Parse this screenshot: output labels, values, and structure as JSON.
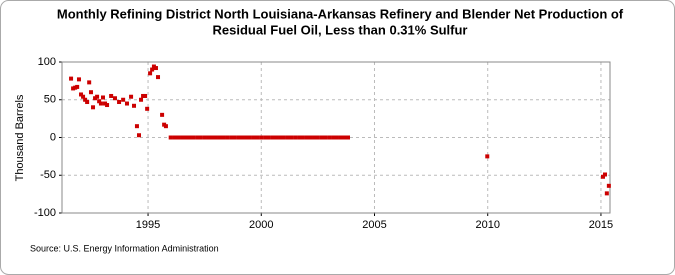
{
  "chart_data": {
    "type": "scatter",
    "title": [
      "Monthly Refining District North Louisiana-Arkansas Refinery and Blender Net Production of",
      "Residual Fuel Oil, Less than 0.31% Sulfur"
    ],
    "y_label": "Thousand Barrels",
    "source": "Source: U.S. Energy Information Administration",
    "color": "#cc0000",
    "grid": true,
    "xlim": [
      1991.2,
      2015.4
    ],
    "ylim": [
      -100,
      100
    ],
    "xticks": [
      1995,
      2000,
      2005,
      2010,
      2015
    ],
    "yticks": [
      -100,
      -50,
      0,
      50,
      100
    ],
    "x": [
      1991.6,
      1991.69,
      1991.78,
      1991.87,
      1991.95,
      1992.04,
      1992.13,
      1992.22,
      1992.31,
      1992.4,
      1992.48,
      1992.57,
      1992.66,
      1992.75,
      1992.84,
      1992.92,
      1993.01,
      1993.1,
      1993.19,
      1993.37,
      1993.54,
      1993.72,
      1993.9,
      1994.07,
      1994.25,
      1994.38,
      1994.51,
      1994.6,
      1994.69,
      1994.78,
      1994.87,
      1994.96,
      1995.09,
      1995.18,
      1995.26,
      1995.35,
      1995.44,
      1995.62,
      1995.71,
      1995.79,
      1996,
      1996.17,
      1996.33,
      1996.5,
      1996.67,
      1996.83,
      1997,
      1997.17,
      1997.33,
      1997.5,
      1997.67,
      1997.83,
      1998,
      1998.17,
      1998.33,
      1998.5,
      1998.67,
      1998.83,
      1999,
      1999.17,
      1999.33,
      1999.5,
      1999.67,
      1999.83,
      2000,
      2000.17,
      2000.33,
      2000.5,
      2000.67,
      2000.83,
      2001,
      2001.17,
      2001.33,
      2001.5,
      2001.67,
      2001.83,
      2002,
      2002.17,
      2002.33,
      2002.5,
      2002.67,
      2002.83,
      2003,
      2003.17,
      2003.33,
      2003.5,
      2003.67,
      2003.83,
      2009.98,
      2015.09,
      2015.18,
      2015.26,
      2015.35
    ],
    "values": [
      78,
      65,
      66,
      67,
      77,
      57,
      54,
      50,
      47,
      73,
      60,
      40,
      52,
      54,
      48,
      45,
      53,
      45,
      43,
      55,
      52,
      47,
      50,
      45,
      54,
      42,
      15,
      3,
      50,
      55,
      55,
      38,
      85,
      90,
      94,
      92,
      80,
      30,
      17,
      15,
      0,
      0,
      0,
      0,
      0,
      0,
      0,
      0,
      0,
      0,
      0,
      0,
      0,
      0,
      0,
      0,
      0,
      0,
      0,
      0,
      0,
      0,
      0,
      0,
      0,
      0,
      0,
      0,
      0,
      0,
      0,
      0,
      0,
      0,
      0,
      0,
      0,
      0,
      0,
      0,
      0,
      0,
      0,
      0,
      0,
      0,
      0,
      0,
      -25,
      -52,
      -49,
      -74,
      -64
    ]
  }
}
